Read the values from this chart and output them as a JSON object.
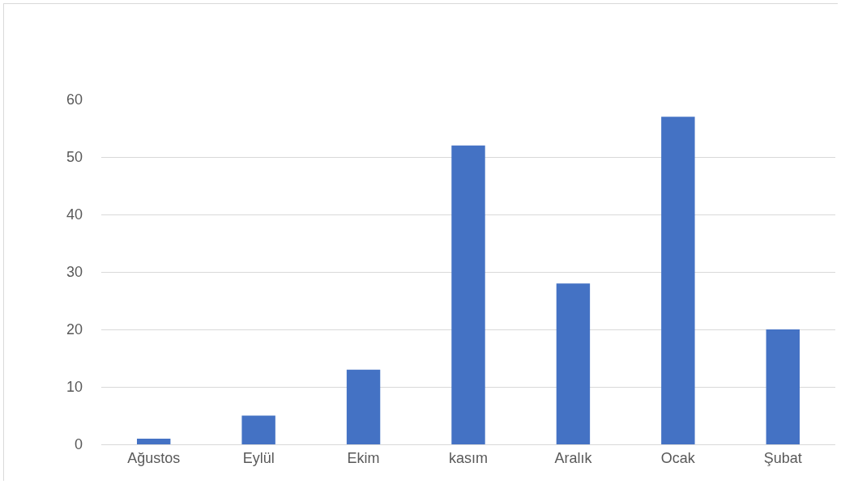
{
  "chart_data": {
    "type": "bar",
    "categories": [
      "Ağustos",
      "Eylül",
      "Ekim",
      "kasım",
      "Aralık",
      "Ocak",
      "Şubat"
    ],
    "values": [
      1,
      5,
      13,
      52,
      28,
      57,
      20
    ],
    "color": "#4472c4",
    "ylim": [
      0,
      60
    ],
    "yticks": [
      0,
      10,
      20,
      30,
      40,
      50,
      60
    ],
    "grid": "y"
  }
}
